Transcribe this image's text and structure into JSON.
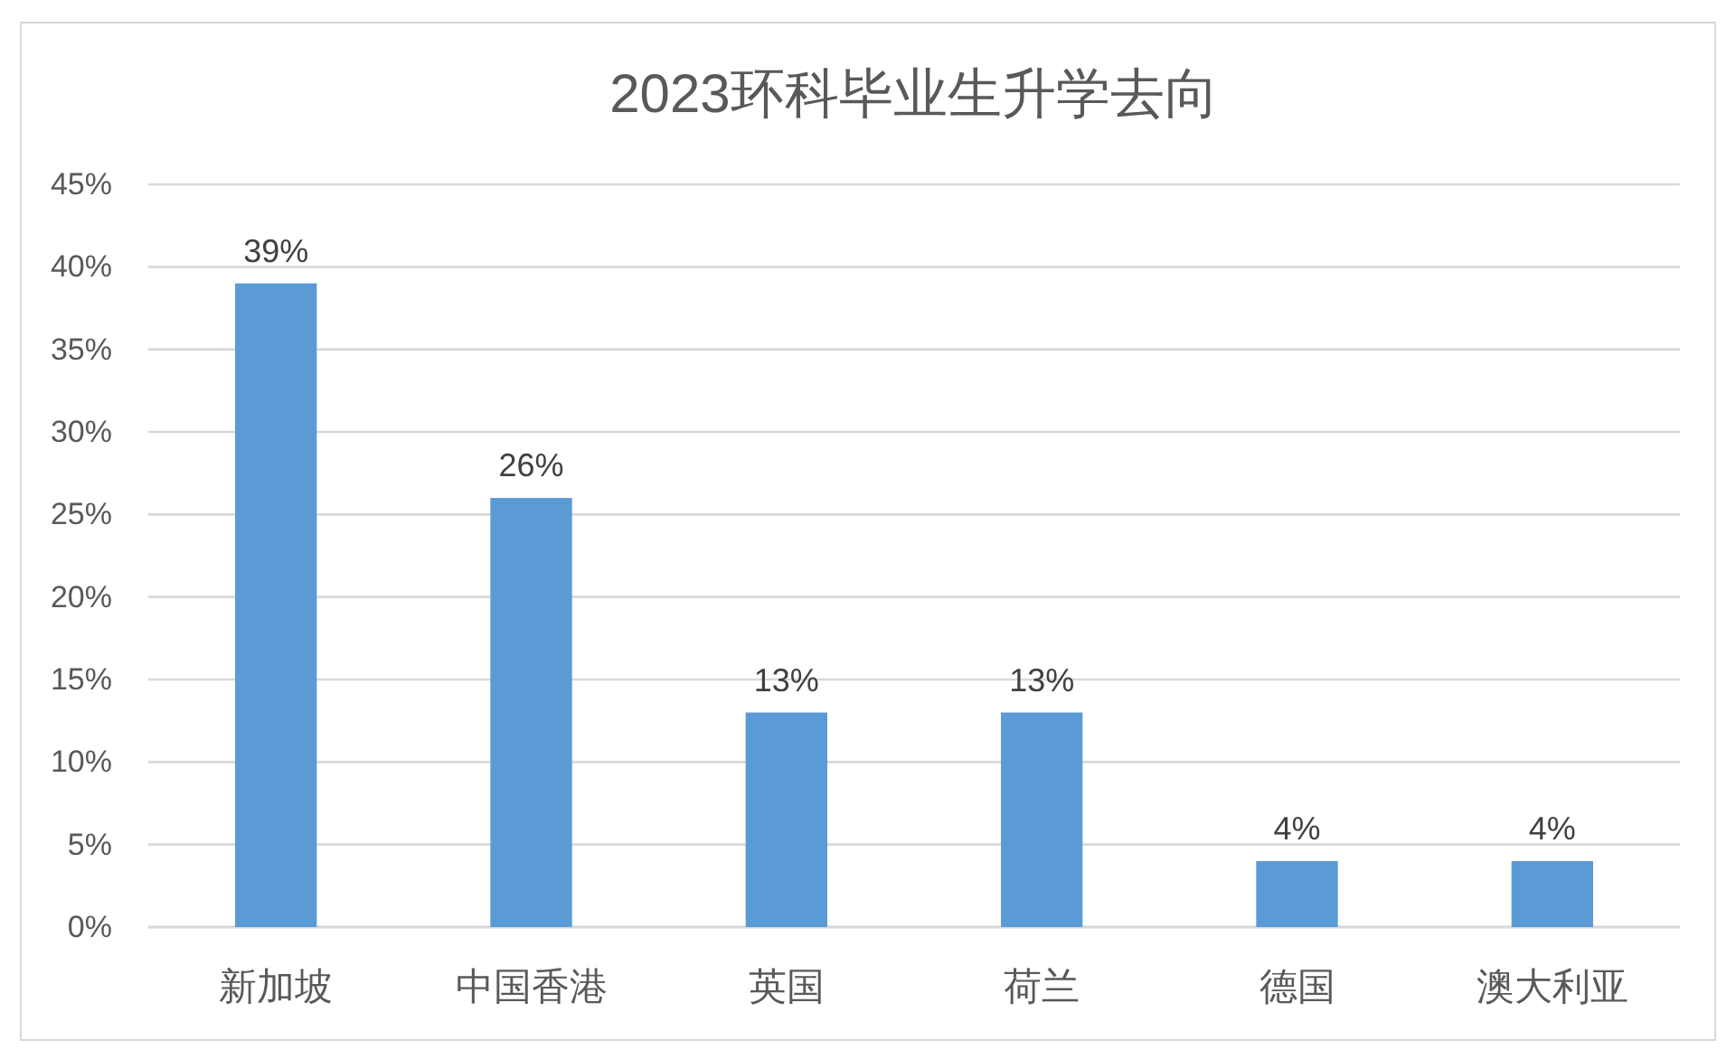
{
  "chart_data": {
    "type": "bar",
    "title": "2023环科毕业生升学去向",
    "categories": [
      "新加坡",
      "中国香港",
      "英国",
      "荷兰",
      "德国",
      "澳大利亚"
    ],
    "values": [
      39,
      26,
      13,
      13,
      4,
      4
    ],
    "value_labels": [
      "39%",
      "26%",
      "13%",
      "13%",
      "4%",
      "4%"
    ],
    "color": "#5b9bd5",
    "ylim": [
      0,
      45
    ],
    "yticks": [
      {
        "value": 0,
        "label": "0%"
      },
      {
        "value": 5,
        "label": "5%"
      },
      {
        "value": 10,
        "label": "10%"
      },
      {
        "value": 15,
        "label": "15%"
      },
      {
        "value": 20,
        "label": "20%"
      },
      {
        "value": 25,
        "label": "25%"
      },
      {
        "value": 30,
        "label": "30%"
      },
      {
        "value": 35,
        "label": "35%"
      },
      {
        "value": 40,
        "label": "40%"
      },
      {
        "value": 45,
        "label": "45%"
      }
    ],
    "grid": "y"
  }
}
